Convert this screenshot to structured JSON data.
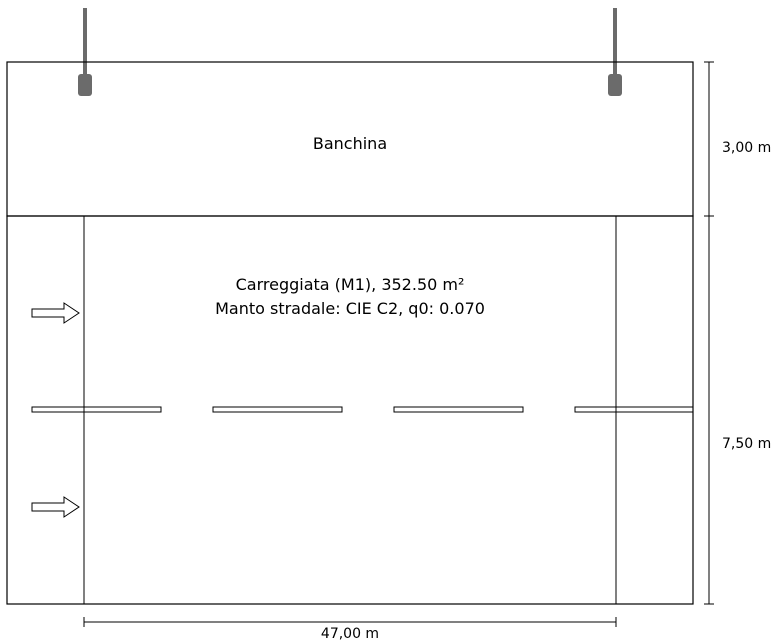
{
  "banchina": {
    "label": "Banchina",
    "height_label": "3,00 m"
  },
  "carreggiata": {
    "title": "Carreggiata (M1), 352.50 m²",
    "subtitle": "Manto stradale: CIE C2, q0: 0.070",
    "height_label": "7,50 m"
  },
  "road": {
    "width_label": "47,00 m"
  },
  "colors": {
    "line": "#000000",
    "pole": "#6b6b6b",
    "background": "#ffffff"
  },
  "icons": [
    "pole-icon",
    "luminaire-icon",
    "traffic-arrow-icon",
    "lane-marking"
  ]
}
